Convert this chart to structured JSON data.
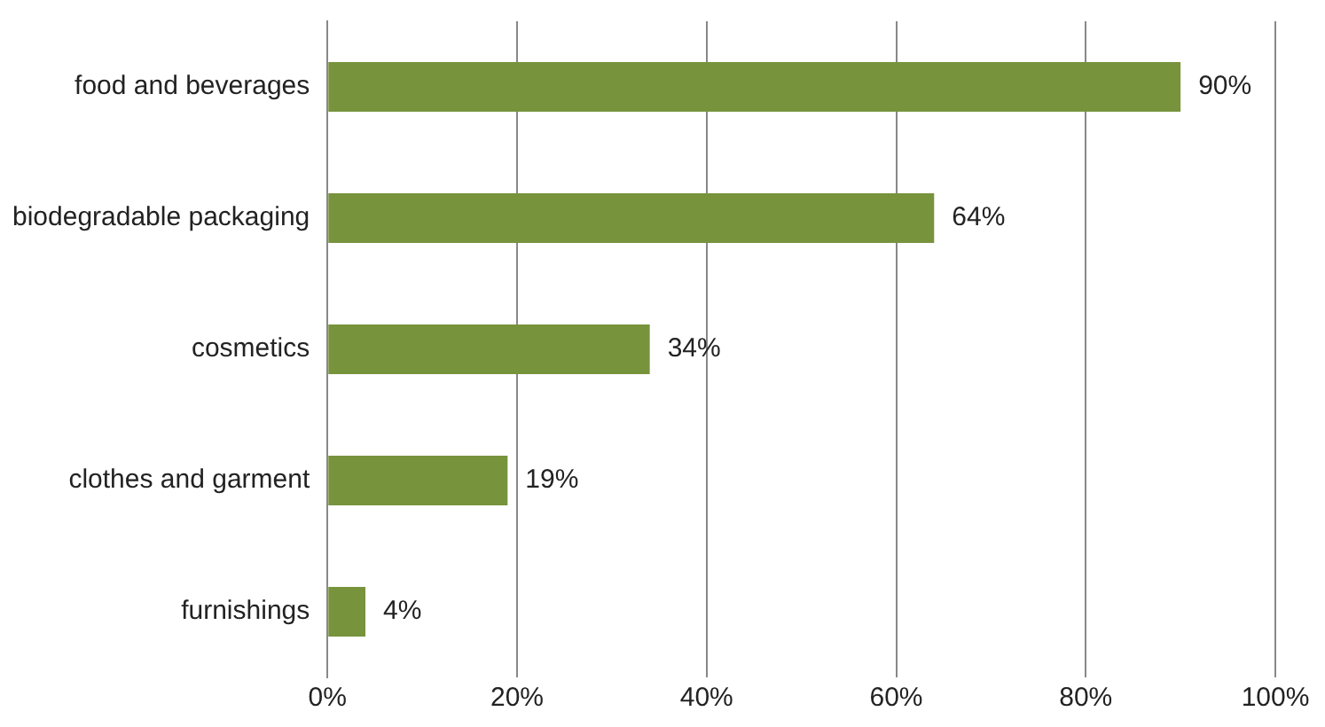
{
  "chart_data": {
    "type": "bar",
    "orientation": "horizontal",
    "categories": [
      "food and beverages",
      "biodegradable packaging",
      "cosmetics",
      "clothes and garment",
      "furnishings"
    ],
    "values": [
      90,
      64,
      34,
      19,
      4
    ],
    "value_labels": [
      "90%",
      "64%",
      "34%",
      "19%",
      "4%"
    ],
    "color": "#77933c",
    "xlim": [
      0,
      100
    ],
    "xticks": [
      {
        "value": 0,
        "label": "0%"
      },
      {
        "value": 20,
        "label": "20%"
      },
      {
        "value": 40,
        "label": "40%"
      },
      {
        "value": 60,
        "label": "60%"
      },
      {
        "value": 80,
        "label": "80%"
      },
      {
        "value": 100,
        "label": "100%"
      }
    ],
    "grid": "x",
    "legend": false
  }
}
